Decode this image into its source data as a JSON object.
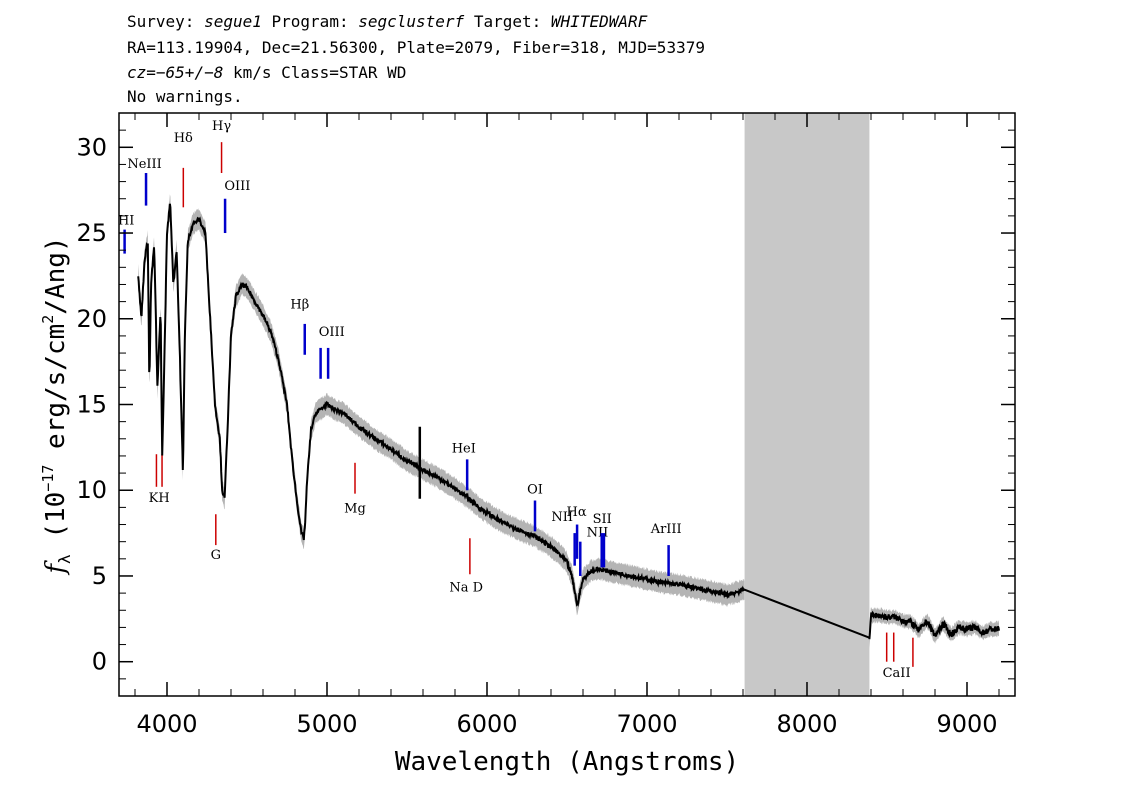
{
  "header": {
    "survey_label": "Survey:",
    "survey": "segue1",
    "program_label": "Program:",
    "program": "segclusterf",
    "target_label": "Target:",
    "target": "WHITEDWARF",
    "line2": "RA=113.19904, Dec=21.56300, Plate=2079, Fiber=318, MJD=53379",
    "cz_label": "cz=",
    "cz_value": "−65+/−8",
    "cz_unit_class": " km/s Class=STAR WD",
    "line4": "No warnings."
  },
  "colors": {
    "flux": "#000000",
    "error": "#b4b4b4",
    "emission": "#0000cc",
    "absorption": "#cc0000",
    "mask": "#c8c8c8"
  },
  "chart_data": {
    "type": "line",
    "xlabel": "Wavelength (Angstroms)",
    "ylabel_prefix": "f",
    "ylabel_sub": "λ",
    "ylabel_mid": " (10",
    "ylabel_sup_exp": "−17",
    "ylabel_tail": " erg/s/cm",
    "ylabel_sup2": "2",
    "ylabel_end": "/Ang)",
    "xlim": [
      3700,
      9300
    ],
    "ylim": [
      -2,
      32
    ],
    "xticks": [
      4000,
      5000,
      6000,
      7000,
      8000,
      9000
    ],
    "yticks": [
      0,
      5,
      10,
      15,
      20,
      25,
      30
    ],
    "masked_region": [
      7610,
      8390
    ],
    "series": [
      {
        "x": [
          3820,
          3840,
          3860,
          3880,
          3890,
          3900,
          3920,
          3940,
          3960,
          3970,
          3980,
          4000,
          4020,
          4040,
          4060,
          4080,
          4100,
          4110,
          4130,
          4160,
          4200,
          4240,
          4270,
          4300,
          4330,
          4345,
          4360,
          4380,
          4400,
          4430,
          4470,
          4500,
          4550,
          4600,
          4650,
          4700,
          4750,
          4780,
          4810,
          4840,
          4855,
          4863,
          4875,
          4900,
          4930,
          4970,
          5000,
          5050,
          5100,
          5200,
          5300,
          5400,
          5500,
          5600,
          5700,
          5800,
          5890,
          5950,
          6000,
          6100,
          6200,
          6300,
          6400,
          6450,
          6500,
          6530,
          6555,
          6563,
          6575,
          6600,
          6650,
          6700,
          6800,
          6900,
          7000,
          7100,
          7200,
          7300,
          7400,
          7500,
          7610,
          8390,
          8400,
          8450,
          8500,
          8550,
          8600,
          8650,
          8700,
          8750,
          8800,
          8850,
          8900,
          8950,
          9000,
          9050,
          9100,
          9150,
          9200
        ],
        "values": [
          22.5,
          20,
          23.5,
          24.5,
          16,
          22,
          24.3,
          16,
          20.5,
          12,
          16,
          25,
          26.8,
          22,
          24,
          18,
          10.8,
          18.5,
          24.5,
          25.5,
          25.8,
          25,
          20,
          15,
          13,
          10,
          9.5,
          14,
          19,
          21.3,
          22,
          21.8,
          21,
          20.2,
          19.2,
          17.5,
          15,
          12,
          9.5,
          7.5,
          7.2,
          8,
          10.5,
          13.5,
          14.5,
          14.8,
          15,
          14.7,
          14.5,
          13.7,
          13,
          12.4,
          11.7,
          11.2,
          10.7,
          10.1,
          9.5,
          9.0,
          8.7,
          8.1,
          7.7,
          7.3,
          6.7,
          6.3,
          5.8,
          5.0,
          3.8,
          3.2,
          3.8,
          4.8,
          5.3,
          5.4,
          5.2,
          5.0,
          4.8,
          4.6,
          4.5,
          4.3,
          4.1,
          3.9,
          4.2,
          1.4,
          2.7,
          2.7,
          2.6,
          2.6,
          2.4,
          2.3,
          1.8,
          2.4,
          1.5,
          2.2,
          1.6,
          2.0,
          1.9,
          2.0,
          1.7,
          1.9,
          1.9
        ]
      }
    ],
    "spectral_lines": [
      {
        "label": "HI",
        "x": 3735,
        "kind": "emission"
      },
      {
        "label": "NeIII",
        "x": 3869,
        "kind": "emission"
      },
      {
        "label": "Hδ",
        "x": 4102,
        "kind": "absorption"
      },
      {
        "label": "Hγ",
        "x": 4341,
        "kind": "absorption"
      },
      {
        "label": "OIII",
        "x": 4363,
        "kind": "emission"
      },
      {
        "label": "K",
        "x": 3934,
        "kind": "absorption"
      },
      {
        "label": "H",
        "x": 3969,
        "kind": "absorption"
      },
      {
        "label": "G",
        "x": 4305,
        "kind": "absorption"
      },
      {
        "label": "Hβ",
        "x": 4861,
        "kind": "emission"
      },
      {
        "label": "OIII",
        "x": 4960,
        "kind": "emission"
      },
      {
        "label": "OIII",
        "x": 5007,
        "kind": "emission"
      },
      {
        "label": "Mg",
        "x": 5175,
        "kind": "absorption"
      },
      {
        "label": "HeI",
        "x": 5876,
        "kind": "emission"
      },
      {
        "label": "Na D",
        "x": 5893,
        "kind": "absorption"
      },
      {
        "label": "OI",
        "x": 6300,
        "kind": "emission"
      },
      {
        "label": "NII",
        "x": 6548,
        "kind": "emission"
      },
      {
        "label": "Hα",
        "x": 6563,
        "kind": "emission"
      },
      {
        "label": "NII",
        "x": 6583,
        "kind": "emission"
      },
      {
        "label": "SII",
        "x": 6717,
        "kind": "emission"
      },
      {
        "label": "SII",
        "x": 6731,
        "kind": "emission"
      },
      {
        "label": "ArIII",
        "x": 7135,
        "kind": "emission"
      },
      {
        "label": "CaII",
        "x": 8498,
        "kind": "absorption"
      },
      {
        "label": "CaII",
        "x": 8542,
        "kind": "absorption"
      },
      {
        "label": "CaII",
        "x": 8662,
        "kind": "absorption"
      }
    ],
    "line_label_texts": {
      "HI": "HI",
      "NeIII": "NeIII",
      "Hdelta": "Hδ",
      "Hgamma": "Hγ",
      "OIII_a": "OIII",
      "KH": "KH",
      "G": "G",
      "Hbeta": "Hβ",
      "OIII_b": "OIII",
      "Mg": "Mg",
      "HeI": "HeI",
      "NaD": "Na D",
      "OI": "OI",
      "NII_a": "NII",
      "Halpha": "Hα",
      "NII_b": "NII",
      "SII": "SII",
      "ArIII": "ArIII",
      "CaII": "CaII"
    }
  }
}
